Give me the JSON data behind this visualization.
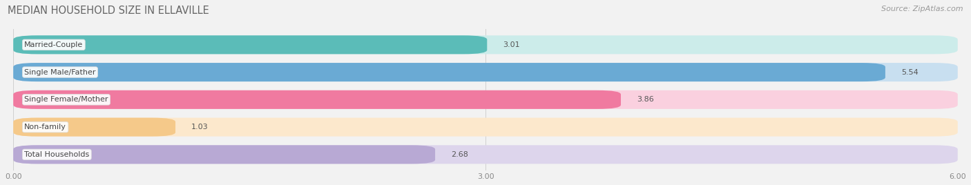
{
  "title": "MEDIAN HOUSEHOLD SIZE IN ELLAVILLE",
  "source": "Source: ZipAtlas.com",
  "categories": [
    "Married-Couple",
    "Single Male/Father",
    "Single Female/Mother",
    "Non-family",
    "Total Households"
  ],
  "values": [
    3.01,
    5.54,
    3.86,
    1.03,
    2.68
  ],
  "bar_colors": [
    "#5bbcb8",
    "#6aaad4",
    "#f07aa0",
    "#f5c98a",
    "#b8a9d4"
  ],
  "bar_bg_colors": [
    "#ccecea",
    "#c8dff0",
    "#fad0df",
    "#fce8cc",
    "#ddd5ec"
  ],
  "xlim": [
    0,
    6.0
  ],
  "xticks": [
    0.0,
    3.0,
    6.0
  ],
  "xtick_labels": [
    "0.00",
    "3.00",
    "6.00"
  ],
  "background_color": "#f2f2f2",
  "title_fontsize": 10.5,
  "label_fontsize": 8,
  "value_fontsize": 8,
  "source_fontsize": 8
}
